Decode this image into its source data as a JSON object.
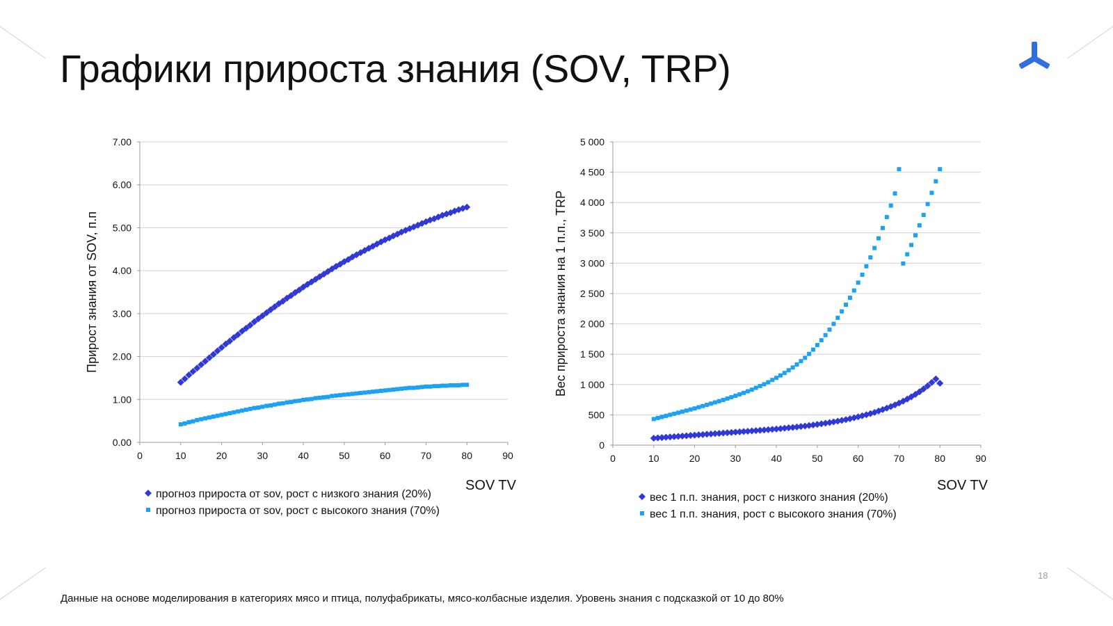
{
  "title": "Графики прироста знания (SOV, TRP)",
  "page_number": "18",
  "footnote": "Данные на основе моделирования в категориях мясо и птица, полуфабрикаты, мясо-колбасные изделия. Уровень знания с подсказкой от 10 до 80%",
  "colors": {
    "dark_series": "#3139d4",
    "light_series": "#1da1f2",
    "logo": "#2f6fe0",
    "grid": "#d0d0d0"
  },
  "chart_data": [
    {
      "type": "scatter",
      "xlabel": "SOV TV",
      "ylabel": "Прирост знания от SOV, п.п",
      "xlim": [
        0,
        90
      ],
      "ylim": [
        0,
        7
      ],
      "x_ticks": [
        "0",
        "10",
        "20",
        "30",
        "40",
        "50",
        "60",
        "70",
        "80",
        "90"
      ],
      "y_ticks": [
        "0.00",
        "1.00",
        "2.00",
        "3.00",
        "4.00",
        "5.00",
        "6.00",
        "7.00"
      ],
      "grid": "horizontal",
      "legend_position": "bottom",
      "series": [
        {
          "name": "прогноз прироста от sov, рост с низкого знания (20%)",
          "marker": "diamond",
          "color": "#3139d4",
          "x": [
            10,
            11,
            12,
            13,
            14,
            15,
            16,
            17,
            18,
            19,
            20,
            21,
            22,
            23,
            24,
            25,
            26,
            27,
            28,
            29,
            30,
            31,
            32,
            33,
            34,
            35,
            36,
            37,
            38,
            39,
            40,
            41,
            42,
            43,
            44,
            45,
            46,
            47,
            48,
            49,
            50,
            51,
            52,
            53,
            54,
            55,
            56,
            57,
            58,
            59,
            60,
            61,
            62,
            63,
            64,
            65,
            66,
            67,
            68,
            69,
            70,
            71,
            72,
            73,
            74,
            75,
            76,
            77,
            78,
            79,
            80
          ],
          "y": [
            1.4,
            1.48,
            1.57,
            1.65,
            1.73,
            1.81,
            1.89,
            1.97,
            2.05,
            2.13,
            2.21,
            2.29,
            2.36,
            2.44,
            2.51,
            2.59,
            2.66,
            2.73,
            2.81,
            2.88,
            2.95,
            3.02,
            3.09,
            3.16,
            3.23,
            3.29,
            3.36,
            3.42,
            3.49,
            3.55,
            3.62,
            3.68,
            3.74,
            3.8,
            3.86,
            3.92,
            3.98,
            4.04,
            4.1,
            4.15,
            4.21,
            4.26,
            4.32,
            4.37,
            4.42,
            4.47,
            4.52,
            4.57,
            4.62,
            4.67,
            4.72,
            4.76,
            4.81,
            4.85,
            4.9,
            4.94,
            4.98,
            5.02,
            5.06,
            5.1,
            5.14,
            5.18,
            5.21,
            5.25,
            5.29,
            5.32,
            5.35,
            5.39,
            5.42,
            5.45,
            5.48
          ]
        },
        {
          "name": "прогноз прироста от sov, рост с высокого знания (70%)",
          "marker": "square",
          "color": "#1da1f2",
          "x": [
            10,
            11,
            12,
            13,
            14,
            15,
            16,
            17,
            18,
            19,
            20,
            21,
            22,
            23,
            24,
            25,
            26,
            27,
            28,
            29,
            30,
            31,
            32,
            33,
            34,
            35,
            36,
            37,
            38,
            39,
            40,
            41,
            42,
            43,
            44,
            45,
            46,
            47,
            48,
            49,
            50,
            51,
            52,
            53,
            54,
            55,
            56,
            57,
            58,
            59,
            60,
            61,
            62,
            63,
            64,
            65,
            66,
            67,
            68,
            69,
            70,
            71,
            72,
            73,
            74,
            75,
            76,
            77,
            78,
            79,
            80
          ],
          "y": [
            0.42,
            0.44,
            0.47,
            0.49,
            0.52,
            0.54,
            0.56,
            0.58,
            0.6,
            0.62,
            0.64,
            0.66,
            0.68,
            0.7,
            0.72,
            0.74,
            0.76,
            0.78,
            0.8,
            0.81,
            0.83,
            0.85,
            0.86,
            0.88,
            0.9,
            0.91,
            0.93,
            0.94,
            0.96,
            0.97,
            0.99,
            1.0,
            1.01,
            1.03,
            1.04,
            1.05,
            1.06,
            1.08,
            1.09,
            1.1,
            1.11,
            1.12,
            1.13,
            1.14,
            1.15,
            1.16,
            1.17,
            1.18,
            1.19,
            1.2,
            1.21,
            1.22,
            1.23,
            1.24,
            1.25,
            1.26,
            1.27,
            1.27,
            1.28,
            1.29,
            1.3,
            1.3,
            1.31,
            1.31,
            1.32,
            1.32,
            1.33,
            1.33,
            1.33,
            1.34,
            1.34
          ]
        }
      ]
    },
    {
      "type": "scatter",
      "xlabel": "SOV TV",
      "ylabel": "Вес прироста знания на 1 п.п., TRP",
      "xlim": [
        0,
        90
      ],
      "ylim": [
        0,
        5000
      ],
      "x_ticks": [
        "0",
        "10",
        "20",
        "30",
        "40",
        "50",
        "60",
        "70",
        "80",
        "90"
      ],
      "y_ticks": [
        "0",
        "500",
        "1 000",
        "1 500",
        "2 000",
        "2 500",
        "3 000",
        "3 500",
        "4 000",
        "4 500",
        "5 000"
      ],
      "grid": "horizontal",
      "legend_position": "bottom",
      "series": [
        {
          "name": "вес 1 п.п. знания, рост с низкого знания (20%)",
          "marker": "diamond",
          "color": "#3139d4",
          "x": [
            10,
            11,
            12,
            13,
            14,
            15,
            16,
            17,
            18,
            19,
            20,
            21,
            22,
            23,
            24,
            25,
            26,
            27,
            28,
            29,
            30,
            31,
            32,
            33,
            34,
            35,
            36,
            37,
            38,
            39,
            40,
            41,
            42,
            43,
            44,
            45,
            46,
            47,
            48,
            49,
            50,
            51,
            52,
            53,
            54,
            55,
            56,
            57,
            58,
            59,
            60,
            61,
            62,
            63,
            64,
            65,
            66,
            67,
            68,
            69,
            70,
            71,
            72,
            73,
            74,
            75,
            76,
            77,
            78,
            79,
            80
          ],
          "y": [
            115,
            120,
            125,
            130,
            135,
            140,
            145,
            150,
            155,
            160,
            165,
            170,
            175,
            180,
            185,
            190,
            195,
            200,
            205,
            210,
            215,
            220,
            225,
            230,
            235,
            240,
            245,
            250,
            255,
            261,
            267,
            273,
            279,
            286,
            293,
            300,
            308,
            316,
            324,
            333,
            342,
            352,
            362,
            373,
            384,
            396,
            409,
            422,
            436,
            451,
            467,
            484,
            502,
            521,
            541,
            563,
            586,
            610,
            636,
            664,
            694,
            726,
            760,
            797,
            837,
            880,
            927,
            978,
            1033,
            1093,
            1020
          ]
        },
        {
          "name": "вес 1 п.п. знания, рост с высокого знания (70%)",
          "marker": "square",
          "color": "#1da1f2",
          "x": [
            10,
            11,
            12,
            13,
            14,
            15,
            16,
            17,
            18,
            19,
            20,
            21,
            22,
            23,
            24,
            25,
            26,
            27,
            28,
            29,
            30,
            31,
            32,
            33,
            34,
            35,
            36,
            37,
            38,
            39,
            40,
            41,
            42,
            43,
            44,
            45,
            46,
            47,
            48,
            49,
            50,
            51,
            52,
            53,
            54,
            55,
            56,
            57,
            58,
            59,
            60,
            61,
            62,
            63,
            64,
            65,
            66,
            67,
            68,
            69,
            70,
            71,
            72,
            73,
            74,
            75,
            76,
            77,
            78,
            79,
            80
          ],
          "y": [
            430,
            448,
            465,
            483,
            500,
            518,
            535,
            553,
            570,
            588,
            605,
            625,
            645,
            665,
            685,
            705,
            725,
            745,
            768,
            790,
            815,
            838,
            862,
            888,
            915,
            945,
            975,
            1005,
            1038,
            1075,
            1110,
            1150,
            1190,
            1235,
            1280,
            1330,
            1385,
            1440,
            1505,
            1575,
            1650,
            1730,
            1815,
            1905,
            2000,
            2100,
            2205,
            2315,
            2430,
            2550,
            2680,
            2810,
            2950,
            3095,
            3250,
            3410,
            3580,
            3760,
            3950,
            4150,
            4550,
            2995,
            3147,
            3300,
            3460,
            3625,
            3795,
            3975,
            4160,
            4350,
            4550
          ]
        }
      ]
    }
  ]
}
